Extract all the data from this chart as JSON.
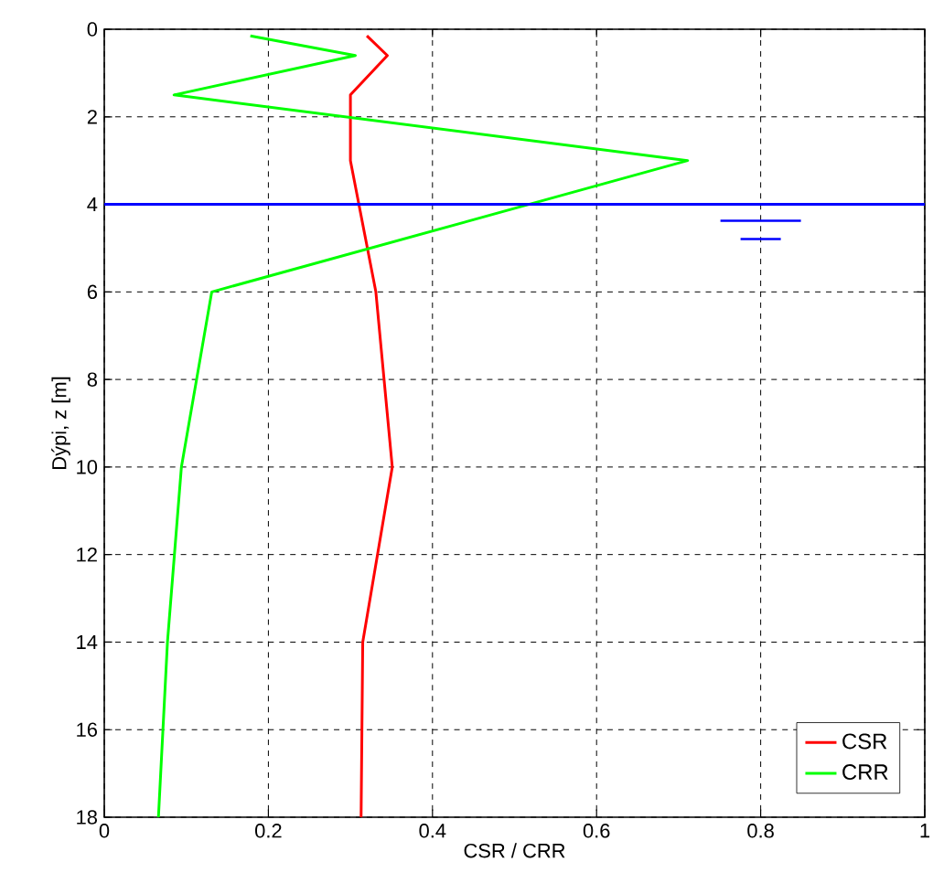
{
  "chart_data": {
    "type": "line",
    "xlabel": "CSR  /  CRR",
    "ylabel": "Dýpi, z [m]",
    "xlim": [
      0,
      1
    ],
    "ylim": [
      18,
      0
    ],
    "xticks": [
      0,
      0.2,
      0.4,
      0.6,
      0.8,
      1
    ],
    "yticks": [
      0,
      2,
      4,
      6,
      8,
      10,
      12,
      14,
      16,
      18
    ],
    "grid": true,
    "legend": "bottom right",
    "line_style": "solid",
    "series": [
      {
        "name": "CSR",
        "color": "#ff0000",
        "x": [
          0.32,
          0.345,
          0.3,
          0.3,
          0.331,
          0.351,
          0.315,
          0.313
        ],
        "values": [
          0.15,
          0.6,
          1.5,
          3,
          6,
          10,
          14,
          18
        ]
      },
      {
        "name": "CRR",
        "color": "#00ff00",
        "x": [
          0.178,
          0.306,
          0.085,
          0.711,
          0.131,
          0.094,
          0.077,
          0.066
        ],
        "values": [
          0.15,
          0.6,
          1.5,
          3,
          6,
          10,
          14,
          18
        ]
      }
    ],
    "ref_lines": [
      {
        "axis": "y",
        "value": 4,
        "color": "#0000ff",
        "line_style": "solid"
      }
    ]
  }
}
